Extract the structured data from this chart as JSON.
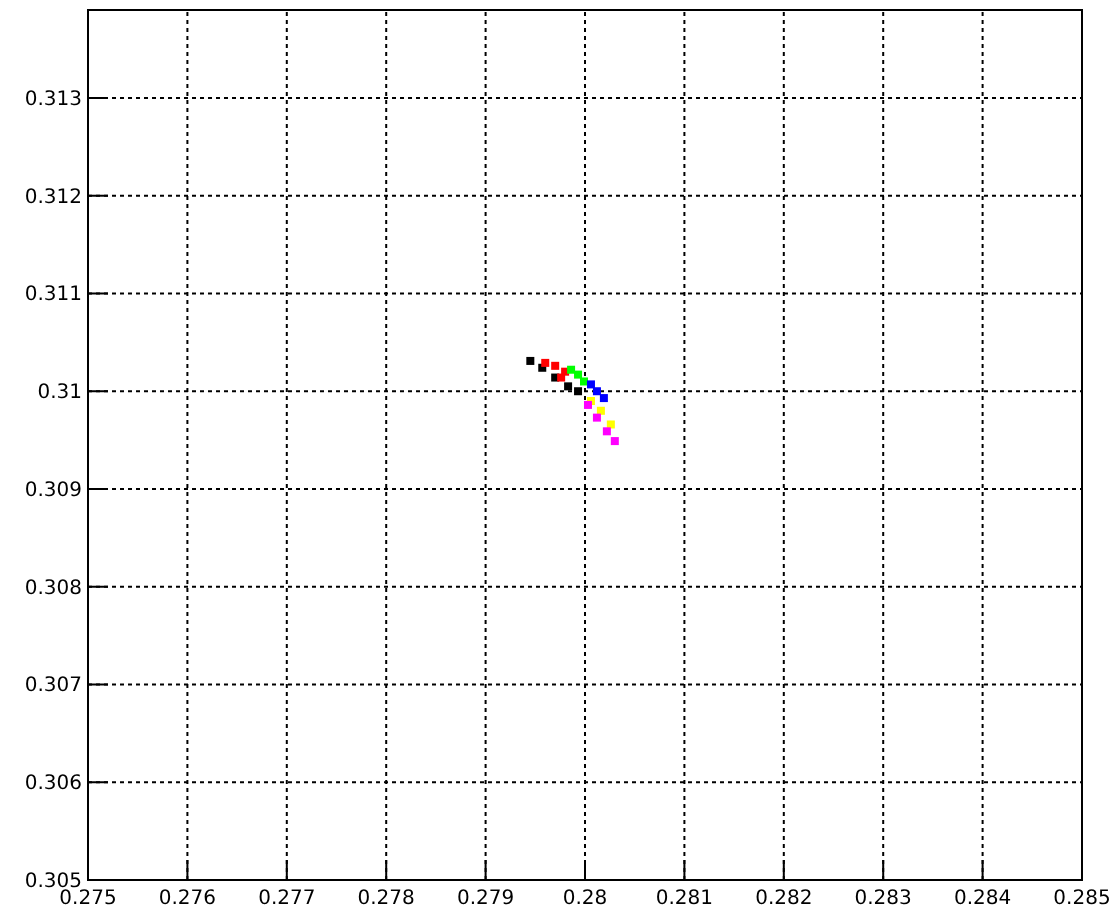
{
  "chart_data": {
    "type": "scatter",
    "xlim": [
      0.275,
      0.285
    ],
    "ylim": [
      0.305,
      0.3139
    ],
    "xticks": [
      0.275,
      0.276,
      0.277,
      0.278,
      0.279,
      0.28,
      0.281,
      0.282,
      0.283,
      0.284,
      0.285
    ],
    "yticks": [
      0.305,
      0.306,
      0.307,
      0.308,
      0.309,
      0.31,
      0.311,
      0.312,
      0.313
    ],
    "grid": true,
    "marker": "square",
    "series": [
      {
        "color": "#000000",
        "x": [
          0.27945,
          0.27957,
          0.2797,
          0.27983,
          0.27993
        ],
        "values": [
          0.31031,
          0.31024,
          0.31014,
          0.31005,
          0.31
        ]
      },
      {
        "color": "#ff0000",
        "x": [
          0.2796,
          0.2797,
          0.2798,
          0.27976
        ],
        "values": [
          0.31029,
          0.31026,
          0.3102,
          0.31014
        ]
      },
      {
        "color": "#00ff00",
        "x": [
          0.27986,
          0.27993,
          0.27999
        ],
        "values": [
          0.31022,
          0.31017,
          0.3101
        ]
      },
      {
        "color": "#0000ff",
        "x": [
          0.28006,
          0.28012,
          0.28019
        ],
        "values": [
          0.31007,
          0.31,
          0.30993
        ]
      },
      {
        "color": "#ffff00",
        "x": [
          0.28006,
          0.28016,
          0.28026
        ],
        "values": [
          0.3099,
          0.3098,
          0.30966
        ]
      },
      {
        "color": "#ff00ff",
        "x": [
          0.28003,
          0.28012,
          0.28022,
          0.2803
        ],
        "values": [
          0.30986,
          0.30973,
          0.30959,
          0.30949
        ]
      }
    ]
  }
}
